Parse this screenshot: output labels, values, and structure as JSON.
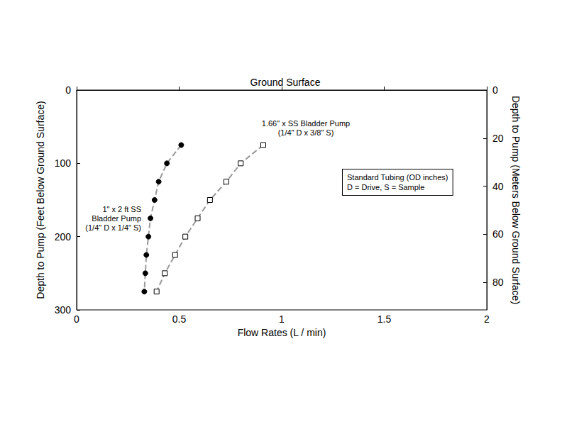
{
  "chart_data": {
    "type": "line",
    "title": "Ground Surface",
    "x_label": "Flow Rates (L / min)",
    "y_label": "Depth to Pump (Feet Below Ground Surface)",
    "y2_label": "Depth to Pump (Meters Below Ground Surface)",
    "xlim": [
      0,
      2
    ],
    "xticks": [
      0,
      0.5,
      1,
      1.5,
      2
    ],
    "ylim": [
      0,
      300
    ],
    "yticks": [
      0,
      100,
      200,
      300
    ],
    "y2lim": [
      0,
      91.44
    ],
    "y2ticks": [
      0,
      20,
      40,
      60,
      80
    ],
    "grid": false,
    "annotations": [
      "Standard Tubing (OD inches)\nD = Drive, S = Sample"
    ],
    "series": [
      {
        "name": "1\" x 2 ft SS\nBladder Pump\n(1/4\" D x 1/4\" S)",
        "color": "#000000",
        "marker": "circle",
        "line_style": "dashed",
        "x": [
          0.51,
          0.44,
          0.4,
          0.38,
          0.36,
          0.35,
          0.34,
          0.335,
          0.33
        ],
        "values": [
          75,
          100,
          125,
          150,
          175,
          200,
          225,
          250,
          275
        ]
      },
      {
        "name": "1.66\" x SS Bladder Pump\n(1/4\" D x 3/8\" S)",
        "color": "#000000",
        "marker": "square_open",
        "line_style": "dashed",
        "x": [
          0.91,
          0.8,
          0.73,
          0.65,
          0.59,
          0.53,
          0.48,
          0.43,
          0.39
        ],
        "values": [
          75,
          100,
          125,
          150,
          175,
          200,
          225,
          250,
          275
        ]
      }
    ]
  }
}
